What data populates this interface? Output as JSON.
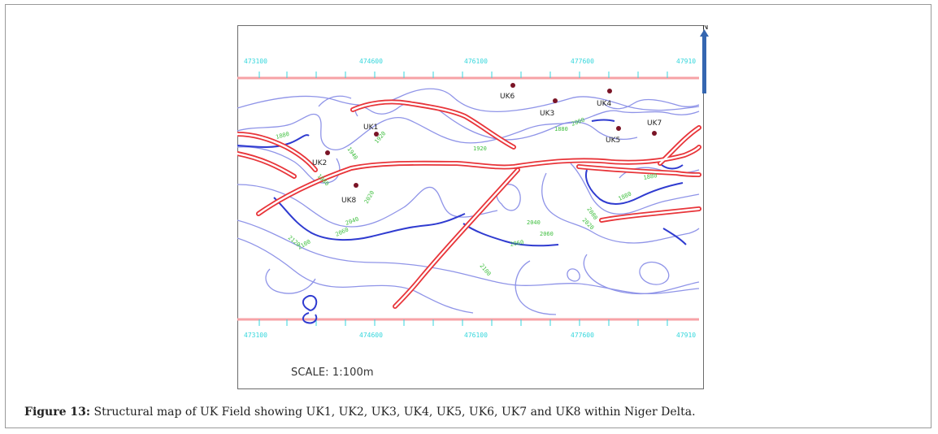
{
  "map": {
    "north_label": "N",
    "scale": "SCALE: 1:100m",
    "grid_labels_top": [
      "473100",
      "474600",
      "476100",
      "477600",
      "47910"
    ],
    "grid_labels_bottom": [
      "473100",
      "474600",
      "476100",
      "477600",
      "47910"
    ],
    "wells": [
      "UK1",
      "UK2",
      "UK3",
      "UK4",
      "UK5",
      "UK6",
      "UK7",
      "UK8"
    ],
    "contour_labels": [
      "1880",
      "1920",
      "1940",
      "1980",
      "2000",
      "2020",
      "2040",
      "2060",
      "2080",
      "2100",
      "2120"
    ],
    "colors": {
      "contour": "#8f94e8",
      "contour_bold": "#2f3bd0",
      "fault": "#e8353a",
      "fault_inner": "#ffffff",
      "grid_label": "#34d6dc",
      "contour_label": "#3fbf3f",
      "boundary": "#f7a2a6",
      "well": "#7a1426",
      "north_arrow": "#3566b0"
    }
  },
  "caption": {
    "label": "Figure 13:",
    "text": " Structural map of UK Field showing UK1, UK2, UK3, UK4, UK5, UK6, UK7 and UK8 within Niger Delta."
  }
}
